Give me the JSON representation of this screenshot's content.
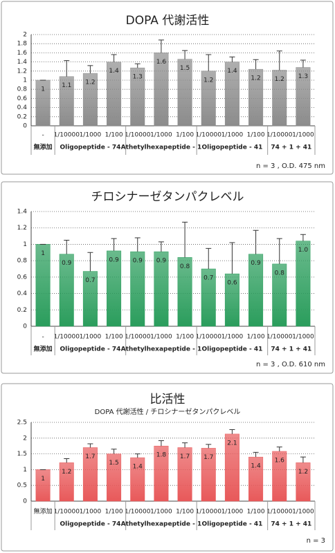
{
  "chart_data": [
    {
      "type": "bar",
      "title": "DOPA 代謝活性",
      "categories": [
        "-",
        "1/10000",
        "1/1000",
        "1/100",
        "1/10000",
        "1/1000",
        "1/100",
        "1/10000",
        "1/1000",
        "1/100",
        "1/10000",
        "1/1000"
      ],
      "groups": [
        {
          "name": "無添加",
          "size": 1
        },
        {
          "name": "Oligopeptide - 74",
          "size": 3
        },
        {
          "name": "Athetylhexapeptide - 1",
          "size": 3
        },
        {
          "name": "Oligopeptide - 41",
          "size": 3
        },
        {
          "name": "74 + 1 + 41",
          "size": 2
        }
      ],
      "series": [
        {
          "color": "#8c8c8c",
          "values": [
            1.0,
            1.08,
            1.15,
            1.4,
            1.27,
            1.6,
            1.46,
            1.2,
            1.4,
            1.24,
            1.22,
            1.28
          ],
          "value_labels": [
            "1",
            "1.1",
            "1.2",
            "1.4",
            "1.3",
            "1.6",
            "1.5",
            "1.2",
            "1.4",
            "1.2",
            "1.2",
            "1.3"
          ],
          "errors": [
            0,
            0.35,
            0.17,
            0.16,
            0.09,
            0.28,
            0.19,
            0.36,
            0.11,
            0.21,
            0.42,
            0.16
          ]
        }
      ],
      "ylim": [
        0,
        2
      ],
      "yticks": [
        0,
        0.2,
        0.4,
        0.6,
        0.8,
        1,
        1.2,
        1.4,
        1.6,
        1.8,
        2
      ],
      "grid": true,
      "note": "n = 3 , O.D. 475 nm"
    },
    {
      "type": "bar",
      "title": "チロシナーゼタンパクレベル",
      "categories": [
        "-",
        "1/10000",
        "1/1000",
        "1/100",
        "1/10000",
        "1/1000",
        "1/100",
        "1/10000",
        "1/1000",
        "1/100",
        "1/10000",
        "1/1000"
      ],
      "groups": [
        {
          "name": "無添加",
          "size": 1
        },
        {
          "name": "Oligopeptide - 74",
          "size": 3
        },
        {
          "name": "Athetylhexapeptide - 1",
          "size": 3
        },
        {
          "name": "Oligopeptide - 41",
          "size": 3
        },
        {
          "name": "74 + 1 + 41",
          "size": 2
        }
      ],
      "series": [
        {
          "color": "#2a9d5c",
          "values": [
            1.0,
            0.88,
            0.67,
            0.92,
            0.91,
            0.91,
            0.84,
            0.7,
            0.64,
            0.88,
            0.76,
            1.04
          ],
          "value_labels": [
            "1",
            "0.9",
            "0.7",
            "0.9",
            "0.9",
            "0.9",
            "0.8",
            "0.7",
            "0.6",
            "0.9",
            "0.8",
            "1.0"
          ],
          "errors": [
            0,
            0.17,
            0.23,
            0.15,
            0.17,
            0.12,
            0.43,
            0.25,
            0.38,
            0.29,
            0.31,
            0.08
          ]
        }
      ],
      "ylim": [
        0,
        1.4
      ],
      "yticks": [
        0,
        0.2,
        0.4,
        0.6,
        0.8,
        1,
        1.2,
        1.4
      ],
      "grid": true,
      "note": "n = 3 , O.D. 610 nm"
    },
    {
      "type": "bar",
      "title": "比活性",
      "subtitle": "DOPA 代謝活性 / チロシナーゼタンパクレベル",
      "categories": [
        "無添加",
        "1/10000",
        "1/1000",
        "1/100",
        "1/10000",
        "1/1000",
        "1/100",
        "1/10000",
        "1/1000",
        "1/100",
        "1/10000",
        "1/1000"
      ],
      "groups": [
        {
          "name": "",
          "size": 1
        },
        {
          "name": "Oligopeptide - 74",
          "size": 3
        },
        {
          "name": "Athetylhexapeptide - 1",
          "size": 3
        },
        {
          "name": "Oligopeptide - 41",
          "size": 3
        },
        {
          "name": "74 + 1 + 41",
          "size": 2
        }
      ],
      "series": [
        {
          "color": "#e8595a",
          "values": [
            1.0,
            1.22,
            1.7,
            1.5,
            1.38,
            1.75,
            1.7,
            1.68,
            2.13,
            1.4,
            1.58,
            1.22
          ],
          "value_labels": [
            "1",
            "1.2",
            "1.7",
            "1.5",
            "1.4",
            "1.8",
            "1.7",
            "1.7",
            "2.1",
            "1.4",
            "1.6",
            "1.2"
          ],
          "errors": [
            0,
            0.13,
            0.12,
            0.15,
            0.12,
            0.17,
            0.15,
            0.12,
            0.14,
            0.15,
            0.14,
            0.18
          ]
        }
      ],
      "ylim": [
        0,
        2.5
      ],
      "yticks": [
        0,
        0.5,
        1,
        1.5,
        2,
        2.5
      ],
      "grid": true,
      "note": "n = 3"
    }
  ]
}
